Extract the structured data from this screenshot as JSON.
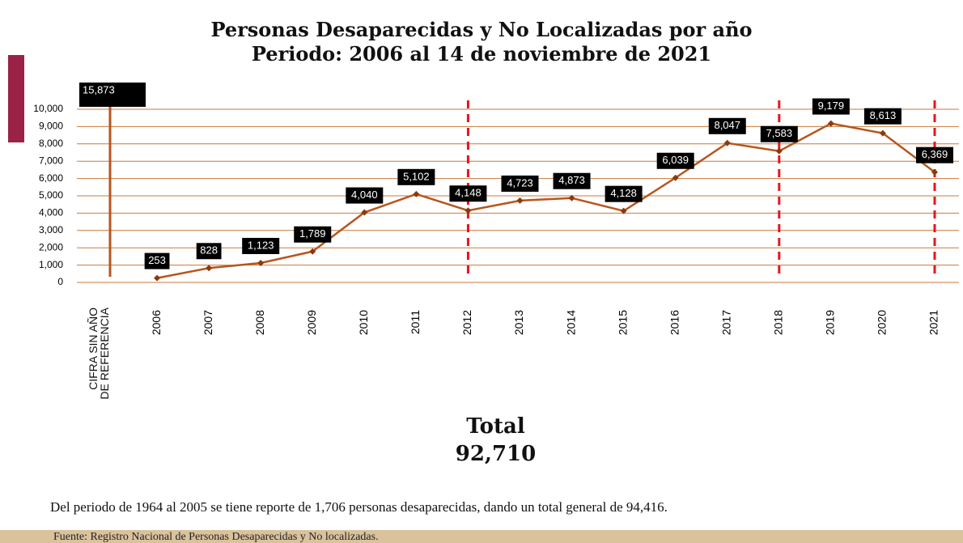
{
  "title_lines": [
    "Personas Desaparecidas y No Localizadas por año",
    "Periodo: 2006 al 14 de noviembre de 2021"
  ],
  "chart_data": {
    "type": "line",
    "categories": [
      "CIFRA SIN AÑO DE REFERENCIA",
      "2006",
      "2007",
      "2008",
      "2009",
      "2010",
      "2011",
      "2012",
      "2013",
      "2014",
      "2015",
      "2016",
      "2017",
      "2018",
      "2019",
      "2020",
      "2021"
    ],
    "series": [
      {
        "color": "#b5561e",
        "values": [
          null,
          253,
          828,
          1123,
          1789,
          4040,
          5102,
          4148,
          4723,
          4873,
          4128,
          6039,
          8047,
          7583,
          9179,
          8613,
          6369
        ],
        "value_labels": [
          null,
          "253",
          "828",
          "1,123",
          "1,789",
          "4,040",
          "5,102",
          "4,148",
          "4,723",
          "4,873",
          "4,128",
          "6,039",
          "8,047",
          "7,583",
          "9,179",
          "8,613",
          "6,369"
        ]
      }
    ],
    "unassigned": {
      "value": 15873,
      "value_label": "15,873",
      "color": "#b5561e"
    },
    "ylim": [
      0,
      10000
    ],
    "yticks": [
      0,
      {
        "value": 1000,
        "label": "1,000"
      },
      {
        "value": 2000,
        "label": "2,000"
      },
      {
        "value": 3000,
        "label": "3,000"
      },
      {
        "value": 4000,
        "label": "4,000"
      },
      {
        "value": 5000,
        "label": "5,000"
      },
      {
        "value": 6000,
        "label": "6,000"
      },
      {
        "value": 7000,
        "label": "7,000"
      },
      {
        "value": 8000,
        "label": "8,000"
      },
      {
        "value": 9000,
        "label": "9,000"
      },
      {
        "value": 10000,
        "label": "10,000"
      }
    ],
    "grid": true,
    "grid_color": "#c97a3c",
    "dashed_lines_at": [
      7,
      13,
      16
    ],
    "dashed_color": "#e8141c"
  },
  "total": {
    "label": "Total",
    "value": "92,710"
  },
  "note": "Del periodo de 1964 al 2005 se tiene reporte de 1,706 personas desaparecidas, dando un total general de 94,416.",
  "source": "Fuente: Registro Nacional de Personas Desaparecidas y No localizadas."
}
